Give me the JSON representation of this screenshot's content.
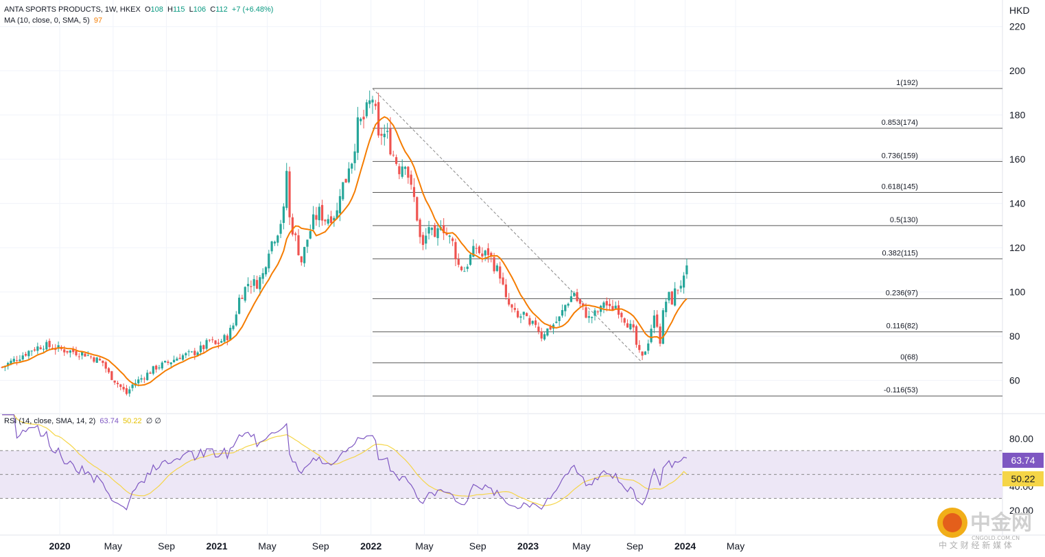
{
  "header": {
    "symbol": "ANTA SPORTS PRODUCTS, 1W, HKEX",
    "o_label": "O",
    "o": "108",
    "h_label": "H",
    "h": "115",
    "l_label": "L",
    "l": "106",
    "c_label": "C",
    "c": "112",
    "change": "+7 (+6.48%)",
    "ma_label": "MA (10, close, 0, SMA, 5)",
    "ma_value": "97",
    "rsi_label": "RSI (14, close, SMA, 14, 2)",
    "rsi_value": "63.74",
    "rsi_ma_value": "50.22",
    "rsi_extra": "∅ ∅"
  },
  "colors": {
    "up": "#26a69a",
    "down": "#ef5350",
    "ma": "#f57c00",
    "rsi": "#7e57c2",
    "rsi_ma": "#f5d547",
    "rsi_band": "#ede7f6",
    "grid": "#f0f3fa",
    "fib": "#555555"
  },
  "chart_data": [
    {
      "type": "candlestick",
      "title": "ANTA SPORTS PRODUCTS, 1W, HKEX",
      "ylabel": "HKD",
      "ylim": [
        45,
        232
      ],
      "yticks": [
        60,
        80,
        100,
        120,
        140,
        160,
        180,
        200,
        220
      ],
      "time_labels": [
        {
          "text": "2020",
          "bold": true
        },
        {
          "text": "May",
          "bold": false
        },
        {
          "text": "Sep",
          "bold": false
        },
        {
          "text": "2021",
          "bold": true
        },
        {
          "text": "May",
          "bold": false
        },
        {
          "text": "Sep",
          "bold": false
        },
        {
          "text": "2022",
          "bold": true
        },
        {
          "text": "May",
          "bold": false
        },
        {
          "text": "Sep",
          "bold": false
        },
        {
          "text": "2023",
          "bold": true
        },
        {
          "text": "May",
          "bold": false
        },
        {
          "text": "Sep",
          "bold": false
        },
        {
          "text": "2024",
          "bold": true
        },
        {
          "text": "May",
          "bold": false
        }
      ],
      "close_path": [
        [
          0,
          66
        ],
        [
          10,
          74
        ],
        [
          14,
          76
        ],
        [
          20,
          74
        ],
        [
          28,
          72
        ],
        [
          34,
          68
        ],
        [
          36,
          63
        ],
        [
          40,
          57
        ],
        [
          42,
          54
        ],
        [
          44,
          58
        ],
        [
          48,
          62
        ],
        [
          52,
          66
        ],
        [
          56,
          68
        ],
        [
          60,
          71
        ],
        [
          64,
          72
        ],
        [
          68,
          75
        ],
        [
          70,
          78
        ],
        [
          72,
          76
        ],
        [
          76,
          80
        ],
        [
          78,
          85
        ],
        [
          80,
          97
        ],
        [
          83,
          104
        ],
        [
          86,
          104
        ],
        [
          88,
          108
        ],
        [
          90,
          120
        ],
        [
          93,
          128
        ],
        [
          95,
          136
        ],
        [
          96,
          155
        ],
        [
          97,
          133
        ],
        [
          99,
          124
        ],
        [
          101,
          114
        ],
        [
          103,
          124
        ],
        [
          105,
          132
        ],
        [
          107,
          136
        ],
        [
          109,
          133
        ],
        [
          113,
          136
        ],
        [
          114,
          146
        ],
        [
          116,
          151
        ],
        [
          117,
          158
        ],
        [
          118,
          160
        ],
        [
          120,
          175
        ],
        [
          122,
          178
        ],
        [
          124,
          185
        ],
        [
          125,
          188
        ],
        [
          126,
          180
        ],
        [
          127,
          168
        ],
        [
          128,
          172
        ],
        [
          130,
          170
        ],
        [
          132,
          162
        ],
        [
          134,
          156
        ],
        [
          136,
          160
        ],
        [
          137,
          153
        ],
        [
          138,
          146
        ],
        [
          139,
          142
        ],
        [
          140,
          134
        ],
        [
          141,
          124
        ],
        [
          142,
          120
        ],
        [
          144,
          130
        ],
        [
          146,
          122
        ],
        [
          148,
          132
        ],
        [
          150,
          126
        ],
        [
          152,
          122
        ],
        [
          154,
          112
        ],
        [
          156,
          110
        ],
        [
          158,
          116
        ],
        [
          160,
          120
        ],
        [
          162,
          116
        ],
        [
          164,
          118
        ],
        [
          166,
          112
        ],
        [
          168,
          108
        ],
        [
          170,
          96
        ],
        [
          172,
          92
        ],
        [
          174,
          88
        ],
        [
          176,
          90
        ],
        [
          178,
          84
        ],
        [
          180,
          86
        ],
        [
          182,
          80
        ],
        [
          183,
          82
        ],
        [
          185,
          84
        ],
        [
          188,
          88
        ],
        [
          190,
          94
        ],
        [
          192,
          98
        ],
        [
          193,
          100
        ],
        [
          194,
          96
        ],
        [
          196,
          92
        ],
        [
          198,
          88
        ],
        [
          200,
          90
        ],
        [
          202,
          92
        ],
        [
          203,
          96
        ],
        [
          205,
          92
        ],
        [
          207,
          94
        ],
        [
          209,
          90
        ],
        [
          211,
          86
        ],
        [
          213,
          82
        ],
        [
          214,
          76
        ],
        [
          215,
          72
        ],
        [
          216,
          70
        ],
        [
          217,
          74
        ],
        [
          218,
          78
        ],
        [
          219,
          84
        ],
        [
          220,
          88
        ],
        [
          221,
          86
        ],
        [
          222,
          78
        ],
        [
          223,
          90
        ],
        [
          224,
          96
        ],
        [
          225,
          98
        ],
        [
          226,
          96
        ],
        [
          227,
          100
        ],
        [
          228,
          102
        ],
        [
          229,
          104
        ],
        [
          230,
          105
        ],
        [
          231,
          112
        ]
      ],
      "moving_average_period": 10,
      "moving_average_last": 97,
      "fibonacci_retracement": {
        "start_week": 125,
        "end_week": 216,
        "label_edge_week": 309,
        "levels": [
          {
            "label": "1(192)",
            "price": 192
          },
          {
            "label": "0.853(174)",
            "price": 174
          },
          {
            "label": "0.736(159)",
            "price": 159
          },
          {
            "label": "0.618(145)",
            "price": 145
          },
          {
            "label": "0.5(130)",
            "price": 130
          },
          {
            "label": "0.382(115)",
            "price": 115
          },
          {
            "label": "0.236(97)",
            "price": 97
          },
          {
            "label": "0.116(82)",
            "price": 82
          },
          {
            "label": "0(68)",
            "price": 68
          },
          {
            "label": "-0.116(53)",
            "price": 53
          }
        ]
      }
    },
    {
      "type": "line",
      "title": "RSI (14, close, SMA, 14, 2)",
      "ylim": [
        5,
        90
      ],
      "yticks": [
        {
          "value": 80,
          "label": "80.00"
        },
        {
          "value": 40,
          "label": "40.00"
        },
        {
          "value": 20,
          "label": "20.00"
        }
      ],
      "band": [
        30,
        70
      ],
      "midline": 50,
      "last_rsi": 63.74,
      "last_rsi_ma": 50.22
    }
  ],
  "badges": {
    "rsi": "63.74",
    "rsi_ma": "50.22"
  },
  "watermark": {
    "brand": "中金网",
    "site": "CNGOLD.COM.CN",
    "tagline": "中 文 财 经 新 媒 体"
  }
}
